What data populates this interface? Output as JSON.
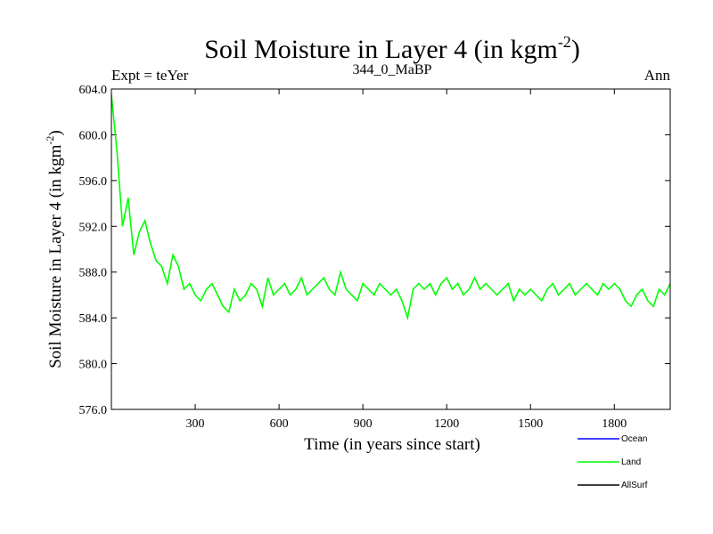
{
  "chart_data": {
    "type": "line",
    "title_main": "Soil Moisture in Layer 4 (in kgm",
    "title_sup": "-2",
    "title_close": ")",
    "left_label": "Expt = teYer",
    "center_label": "344_0_MaBP",
    "right_label": "Ann",
    "xlabel": "Time (in years since start)",
    "ylabel_main": "Soil Moisture in Layer 4 (in kgm",
    "ylabel_sup": "-2",
    "ylabel_close": ")",
    "xlim": [
      0,
      2000
    ],
    "ylim": [
      576,
      604
    ],
    "x_ticks": [
      300,
      600,
      900,
      1200,
      1500,
      1800
    ],
    "x_tick_labels": [
      "300",
      "600",
      "900",
      "1200",
      "1500",
      "1800"
    ],
    "y_ticks": [
      576,
      580,
      584,
      588,
      592,
      596,
      600,
      604
    ],
    "y_tick_labels": [
      "576.0",
      "580.0",
      "584.0",
      "588.0",
      "592.0",
      "596.0",
      "600.0",
      "604.0"
    ],
    "series": [
      {
        "name": "Ocean",
        "color": "#0000ff",
        "values": []
      },
      {
        "name": "Land",
        "color": "#00ff00",
        "x_start": 0,
        "x_step": 20,
        "values": [
          603.5,
          598.5,
          592.0,
          594.5,
          589.5,
          591.5,
          592.5,
          590.5,
          589.0,
          588.5,
          587.0,
          589.5,
          588.5,
          586.5,
          587.0,
          586.0,
          585.5,
          586.5,
          587.0,
          586.0,
          585.0,
          584.5,
          586.5,
          585.5,
          586.0,
          587.0,
          586.5,
          585.0,
          587.5,
          586.0,
          586.5,
          587.0,
          586.0,
          586.5,
          587.5,
          586.0,
          586.5,
          587.0,
          587.5,
          586.5,
          586.0,
          588.0,
          586.5,
          586.0,
          585.5,
          587.0,
          586.5,
          586.0,
          587.0,
          586.5,
          586.0,
          586.5,
          585.5,
          584.0,
          586.5,
          587.0,
          586.5,
          587.0,
          586.0,
          587.0,
          587.5,
          586.5,
          587.0,
          586.0,
          586.5,
          587.5,
          586.5,
          587.0,
          586.5,
          586.0,
          586.5,
          587.0,
          585.5,
          586.5,
          586.0,
          586.5,
          586.0,
          585.5,
          586.5,
          587.0,
          586.0,
          586.5,
          587.0,
          586.0,
          586.5,
          587.0,
          586.5,
          586.0,
          587.0,
          586.5,
          587.0,
          586.5,
          585.5,
          585.0,
          586.0,
          586.5,
          585.5,
          585.0,
          586.5,
          586.0,
          587.0
        ]
      },
      {
        "name": "AllSurf",
        "color": "#000000",
        "values": []
      }
    ],
    "legend": [
      {
        "label": "Ocean",
        "color": "#0000ff"
      },
      {
        "label": "Land",
        "color": "#00ff00"
      },
      {
        "label": "AllSurf",
        "color": "#000000"
      }
    ],
    "legend_position": "bottom-right"
  }
}
